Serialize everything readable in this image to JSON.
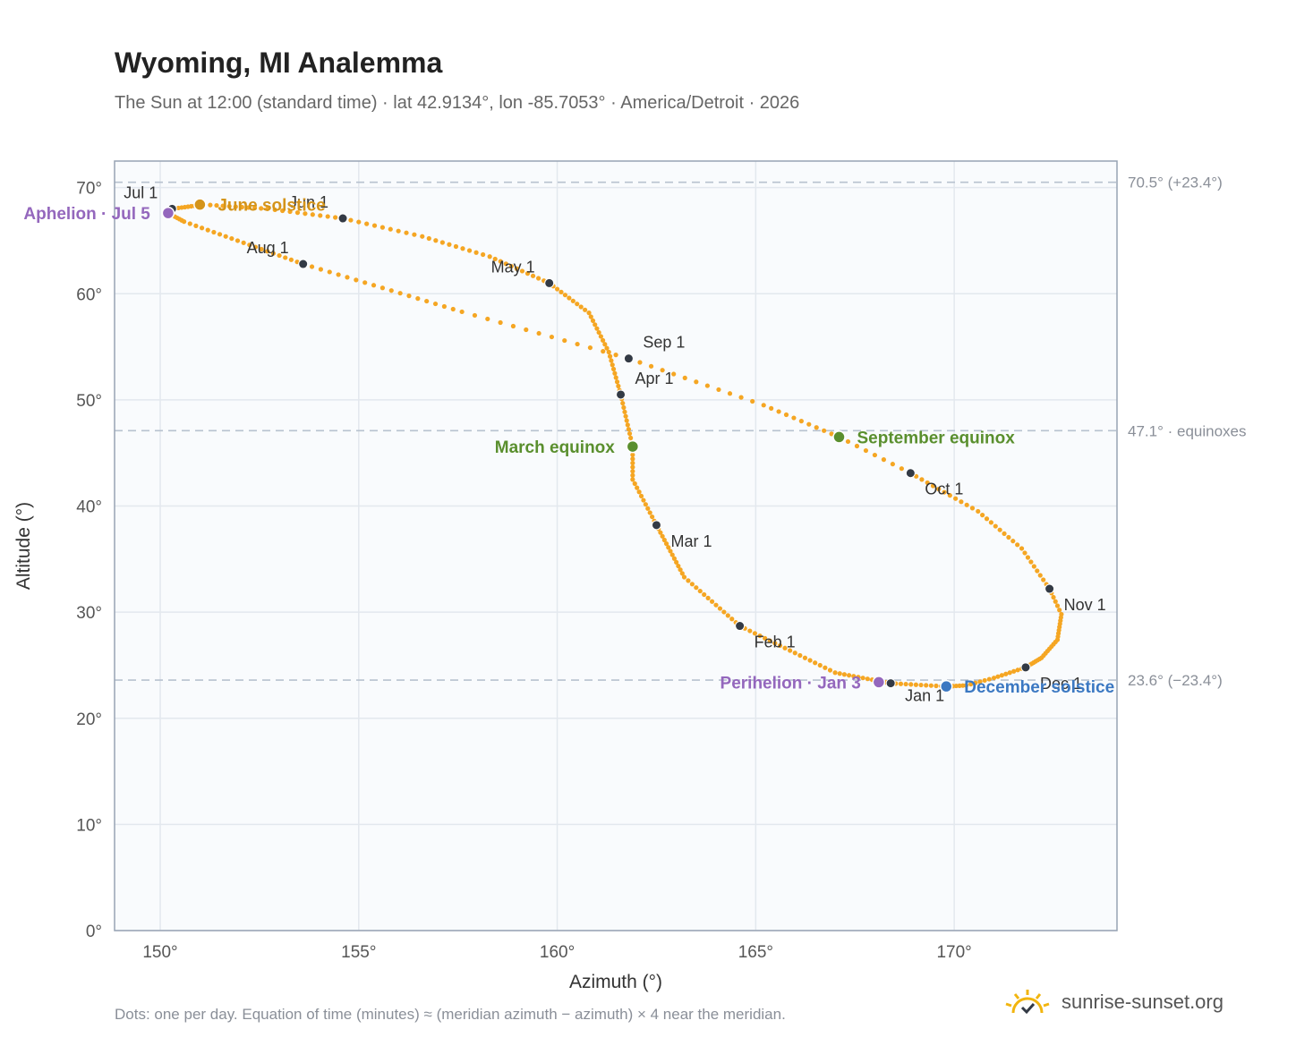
{
  "header": {
    "title": "Wyoming, MI Analemma",
    "subtitle": "The Sun at 12:00 (standard time) · lat 42.9134°, lon -85.7053° · America/Detroit · 2026"
  },
  "footnote": "Dots: one per day. Equation of time (minutes) ≈ (meridian azimuth − azimuth) × 4 near the meridian.",
  "brand": {
    "name": "sunrise-sunset.org",
    "icon": "sun-logo-icon",
    "color": "#f2b50f"
  },
  "colors": {
    "curve": "#f5a623",
    "month_marker": "#333a45",
    "aphelion": "#9467bd",
    "june_solstice": "#d4941a",
    "equinox": "#5a8f2e",
    "december_solstice": "#3b78c2",
    "reference_line": "#b8c2cf",
    "plot_bg": "#f9fbfd",
    "grid": "#e3e8ee",
    "frame": "#97a3b3"
  },
  "chart_data": {
    "type": "scatter",
    "title": "Wyoming, MI Analemma",
    "xlabel": "Azimuth (°)",
    "ylabel": "Altitude (°)",
    "xlim": [
      148.85,
      174.1
    ],
    "ylim": [
      0,
      72.5
    ],
    "x_ticks": [
      150,
      155,
      160,
      165,
      170
    ],
    "x_tick_labels": [
      "150°",
      "155°",
      "160°",
      "165°",
      "170°"
    ],
    "y_ticks": [
      0,
      10,
      20,
      30,
      40,
      50,
      60,
      70
    ],
    "y_tick_labels": [
      "0°",
      "10°",
      "20°",
      "30°",
      "40°",
      "50°",
      "60°",
      "70°"
    ],
    "grid": true,
    "series": [
      {
        "kind": "daily-dots",
        "anchors": [
          {
            "day": 0,
            "x": 168.4,
            "y": 23.3
          },
          {
            "day": 12,
            "x": 167.0,
            "y": 24.3
          },
          {
            "day": 31,
            "x": 164.6,
            "y": 28.7
          },
          {
            "day": 45,
            "x": 163.2,
            "y": 33.3
          },
          {
            "day": 59,
            "x": 162.5,
            "y": 38.2
          },
          {
            "day": 70,
            "x": 161.9,
            "y": 42.5
          },
          {
            "day": 78,
            "x": 161.9,
            "y": 45.6
          },
          {
            "day": 90,
            "x": 161.6,
            "y": 50.5
          },
          {
            "day": 100,
            "x": 161.3,
            "y": 54.5
          },
          {
            "day": 110,
            "x": 160.8,
            "y": 58.2
          },
          {
            "day": 120,
            "x": 159.8,
            "y": 61.0
          },
          {
            "day": 131,
            "x": 158.3,
            "y": 63.5
          },
          {
            "day": 141,
            "x": 156.6,
            "y": 65.4
          },
          {
            "day": 151,
            "x": 154.6,
            "y": 67.1
          },
          {
            "day": 161,
            "x": 152.7,
            "y": 68.0
          },
          {
            "day": 171,
            "x": 151.1,
            "y": 68.4
          },
          {
            "day": 181,
            "x": 150.3,
            "y": 68.0
          },
          {
            "day": 185,
            "x": 150.2,
            "y": 67.6
          },
          {
            "day": 192,
            "x": 150.6,
            "y": 66.8
          },
          {
            "day": 212,
            "x": 153.6,
            "y": 62.8
          },
          {
            "day": 230,
            "x": 157.6,
            "y": 58.3
          },
          {
            "day": 243,
            "x": 161.8,
            "y": 53.9
          },
          {
            "day": 255,
            "x": 165.2,
            "y": 49.5
          },
          {
            "day": 265,
            "x": 167.1,
            "y": 46.5
          },
          {
            "day": 273,
            "x": 168.9,
            "y": 43.1
          },
          {
            "day": 285,
            "x": 170.6,
            "y": 39.5
          },
          {
            "day": 295,
            "x": 171.7,
            "y": 36.0
          },
          {
            "day": 304,
            "x": 172.4,
            "y": 32.2
          },
          {
            "day": 310,
            "x": 172.7,
            "y": 29.8
          },
          {
            "day": 318,
            "x": 172.6,
            "y": 27.4
          },
          {
            "day": 326,
            "x": 172.2,
            "y": 25.7
          },
          {
            "day": 334,
            "x": 171.8,
            "y": 24.8
          },
          {
            "day": 342,
            "x": 171.0,
            "y": 23.8
          },
          {
            "day": 348,
            "x": 170.3,
            "y": 23.1
          },
          {
            "day": 354,
            "x": 169.8,
            "y": 23.0
          },
          {
            "day": 365,
            "x": 168.4,
            "y": 23.3
          }
        ]
      }
    ],
    "month_markers": [
      {
        "label": "Jan 1",
        "x": 168.4,
        "y": 23.3,
        "anchor": "start",
        "dx": 16,
        "dy": 20
      },
      {
        "label": "Feb 1",
        "x": 164.6,
        "y": 28.7,
        "anchor": "start",
        "dx": 16,
        "dy": 24
      },
      {
        "label": "Mar 1",
        "x": 162.5,
        "y": 38.2,
        "anchor": "start",
        "dx": 16,
        "dy": 24
      },
      {
        "label": "Apr 1",
        "x": 161.6,
        "y": 50.5,
        "anchor": "start",
        "dx": 16,
        "dy": -12
      },
      {
        "label": "May 1",
        "x": 159.8,
        "y": 61.0,
        "anchor": "end",
        "dx": -16,
        "dy": -12
      },
      {
        "label": "Jun 1",
        "x": 154.6,
        "y": 67.1,
        "anchor": "end",
        "dx": -16,
        "dy": -12
      },
      {
        "label": "Jul 1",
        "x": 150.3,
        "y": 68.0,
        "anchor": "end",
        "dx": -16,
        "dy": -12
      },
      {
        "label": "Aug 1",
        "x": 153.6,
        "y": 62.8,
        "anchor": "end",
        "dx": -16,
        "dy": -12
      },
      {
        "label": "Sep 1",
        "x": 161.8,
        "y": 53.9,
        "anchor": "start",
        "dx": 16,
        "dy": -12
      },
      {
        "label": "Oct 1",
        "x": 168.9,
        "y": 43.1,
        "anchor": "start",
        "dx": 16,
        "dy": 24
      },
      {
        "label": "Nov 1",
        "x": 172.4,
        "y": 32.2,
        "anchor": "start",
        "dx": 16,
        "dy": 24
      },
      {
        "label": "Dec 1",
        "x": 171.8,
        "y": 24.8,
        "anchor": "start",
        "dx": 16,
        "dy": 24
      }
    ],
    "events": [
      {
        "label": "Aphelion · Jul 5",
        "x": 150.2,
        "y": 67.6,
        "color": "#9467bd",
        "anchor": "end",
        "dx": -20,
        "dy": 7
      },
      {
        "label": "June solstice",
        "x": 151.0,
        "y": 68.4,
        "color": "#d4941a",
        "anchor": "start",
        "dx": 20,
        "dy": 7
      },
      {
        "label": "March equinox",
        "x": 161.9,
        "y": 45.6,
        "color": "#5a8f2e",
        "anchor": "end",
        "dx": -20,
        "dy": 7
      },
      {
        "label": "September equinox",
        "x": 167.1,
        "y": 46.5,
        "color": "#5a8f2e",
        "anchor": "start",
        "dx": 20,
        "dy": 7
      },
      {
        "label": "Perihelion · Jan 3",
        "x": 168.1,
        "y": 23.4,
        "color": "#9467bd",
        "anchor": "end",
        "dx": -20,
        "dy": 7
      },
      {
        "label": "December solstice",
        "x": 169.8,
        "y": 23.0,
        "color": "#3b78c2",
        "anchor": "start",
        "dx": 20,
        "dy": 7
      }
    ],
    "reference_lines": [
      {
        "y": 70.5,
        "label": "70.5° (+23.4°)"
      },
      {
        "y": 47.1,
        "label": "47.1° · equinoxes"
      },
      {
        "y": 23.6,
        "label": "23.6° (−23.4°)"
      }
    ]
  }
}
